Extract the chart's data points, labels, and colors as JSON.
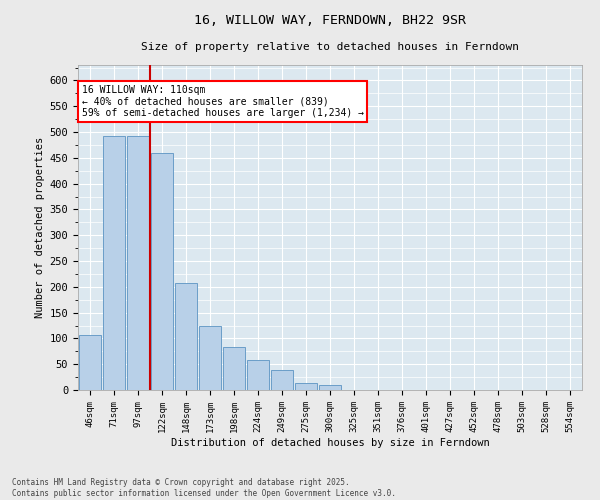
{
  "title": "16, WILLOW WAY, FERNDOWN, BH22 9SR",
  "subtitle": "Size of property relative to detached houses in Ferndown",
  "xlabel": "Distribution of detached houses by size in Ferndown",
  "ylabel": "Number of detached properties",
  "footnote": "Contains HM Land Registry data © Crown copyright and database right 2025.\nContains public sector information licensed under the Open Government Licence v3.0.",
  "bar_labels": [
    "46sqm",
    "71sqm",
    "97sqm",
    "122sqm",
    "148sqm",
    "173sqm",
    "198sqm",
    "224sqm",
    "249sqm",
    "275sqm",
    "300sqm",
    "325sqm",
    "351sqm",
    "376sqm",
    "401sqm",
    "427sqm",
    "452sqm",
    "478sqm",
    "503sqm",
    "528sqm",
    "554sqm"
  ],
  "bar_values": [
    106,
    492,
    492,
    460,
    207,
    125,
    83,
    58,
    38,
    13,
    9,
    0,
    0,
    0,
    0,
    0,
    0,
    0,
    0,
    0,
    0
  ],
  "bar_color": "#b8d0e8",
  "bar_edge_color": "#6b9ec8",
  "background_color": "#dce8f0",
  "grid_color": "#ffffff",
  "vline_color": "#cc0000",
  "annotation_text": "16 WILLOW WAY: 110sqm\n← 40% of detached houses are smaller (839)\n59% of semi-detached houses are larger (1,234) →",
  "fig_bg_color": "#eaeaea",
  "ylim": [
    0,
    630
  ],
  "yticks": [
    0,
    50,
    100,
    150,
    200,
    250,
    300,
    350,
    400,
    450,
    500,
    550,
    600
  ]
}
